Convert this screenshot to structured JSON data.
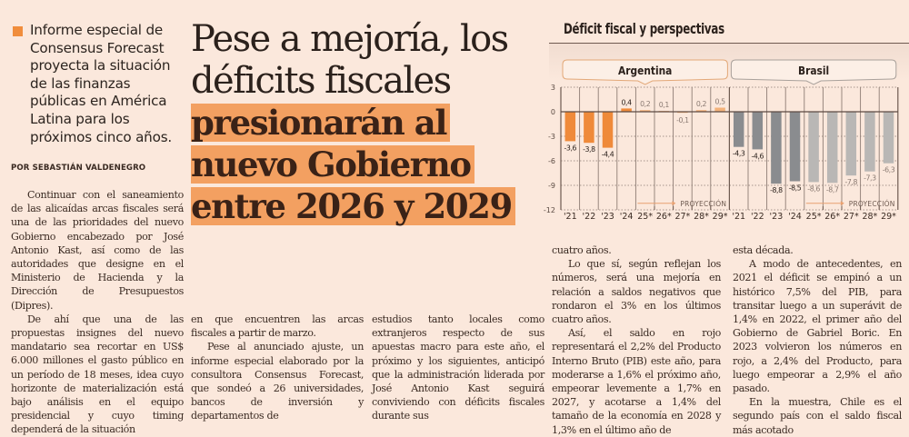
{
  "lead": {
    "text": "Informe especial de Consensus Forecast proyecta la situación de las finanzas públicas en América Latina para los próximos cinco años.",
    "accent_color": "#f08d3c"
  },
  "byline": "POR SEBASTIÁN VALDENEGRO",
  "headline": {
    "light_lines": [
      "Pese a mejoría, los",
      "déficits fiscales"
    ],
    "bold_lines": [
      "presionarán al",
      "nuevo Gobierno",
      "entre 2026 y 2029"
    ],
    "highlight_color": "#f3a061"
  },
  "body": {
    "col1": [
      "Continuar con el saneamiento de las alicaídas arcas fiscales será una de las prioridades del nuevo Gobierno encabezado por José Antonio Kast, así como de las autoridades que designe en el Ministerio de Hacienda y la Dirección de Presupuestos (Dipres).",
      "De ahí que una de las propuestas insignes del nuevo mandatario sea recortar en US$ 6.000 millones el gasto público en un período de 18 meses, idea cuyo horizonte de materialización está bajo análisis en el equipo presidencial y cuyo timing dependerá de la situación"
    ],
    "col2": [
      "en que encuentren las arcas fiscales a partir de marzo.",
      "Pese al anunciado ajuste, un informe especial elaborado por la consultora Consensus Forecast, que sondeó a 26 universidades, bancos de inversión y departamentos de"
    ],
    "col3": [
      "estudios tanto locales como extranjeros respecto de sus apuestas macro para este año, el próximo y los siguientes, anticipó que la administración liderada por José Antonio Kast seguirá conviviendo con déficits fiscales durante sus"
    ],
    "col4": [
      "cuatro años.",
      "Lo que sí, según reflejan los números, será una mejoría en relación a saldos negativos que rondaron el 3% en los últimos cuatro años.",
      "Así, el saldo en rojo representará el 2,2% del Producto Interno Bruto (PIB) este año, para moderarse a 1,6% el próximo año, empeorar levemente a 1,7% en 2027, y acotarse a 1,4% del tamaño de la economía en 2028 y 1,3% en el último año de"
    ],
    "col5": [
      "esta década.",
      "A modo de antecedentes, en 2021 el déficit se empinó a un histórico 7,5% del PIB, para transitar luego a un superávit de 1,4% en 2022, el primer año del Gobierno de Gabriel Boric. En 2023 volvieron los números en rojo, a 2,4% del Producto, para luego empeorar a 2,9% el año pasado.",
      "En la muestra, Chile es el segundo país con el saldo fiscal más acotado"
    ]
  },
  "chart_data": {
    "type": "bar",
    "title": "Déficit fiscal y perspectivas",
    "xlabel": "",
    "ylabel": "",
    "ylim": [
      -12,
      3
    ],
    "yticks": [
      "3",
      "0",
      "-3",
      "-6",
      "-9",
      "-12"
    ],
    "ytick_values": [
      3,
      0,
      -3,
      -6,
      -9,
      -12
    ],
    "grid": true,
    "projection_label": "PROYECCIÓN",
    "colors": {
      "argentina": "#ef8a3a",
      "argentina_projection": "#f4b27a",
      "brasil": "#8a8c8f",
      "brasil_projection": "#b9b7b5",
      "group_border": "#e3a878",
      "brasil_border": "#a9a19b"
    },
    "groups": [
      {
        "name": "Argentina",
        "categories": [
          "'21",
          "'22",
          "'23",
          "'24",
          "25*",
          "26*",
          "27*",
          "28*",
          "29*"
        ],
        "values": [
          -3.6,
          -3.8,
          -4.4,
          0.4,
          0.2,
          0.1,
          -0.1,
          0.2,
          0.5
        ],
        "labels": [
          "-3,6",
          "-3,8",
          "-4,4",
          "0,4",
          "0,2",
          "0,1",
          "-0,1",
          "0,2",
          "0,5"
        ],
        "projection_from_index": 4
      },
      {
        "name": "Brasil",
        "categories": [
          "'21",
          "'22",
          "'23",
          "'24",
          "25*",
          "26*",
          "27*",
          "28*",
          "29*"
        ],
        "values": [
          -4.3,
          -4.6,
          -8.8,
          -8.5,
          -8.6,
          -8.7,
          -7.8,
          -7.3,
          -6.3
        ],
        "labels": [
          "-4,3",
          "-4,6",
          "-8,8",
          "-8,5",
          "-8,6",
          "-8,7",
          "-7,8",
          "-7,3",
          "-6,3"
        ],
        "projection_from_index": 4
      }
    ]
  }
}
